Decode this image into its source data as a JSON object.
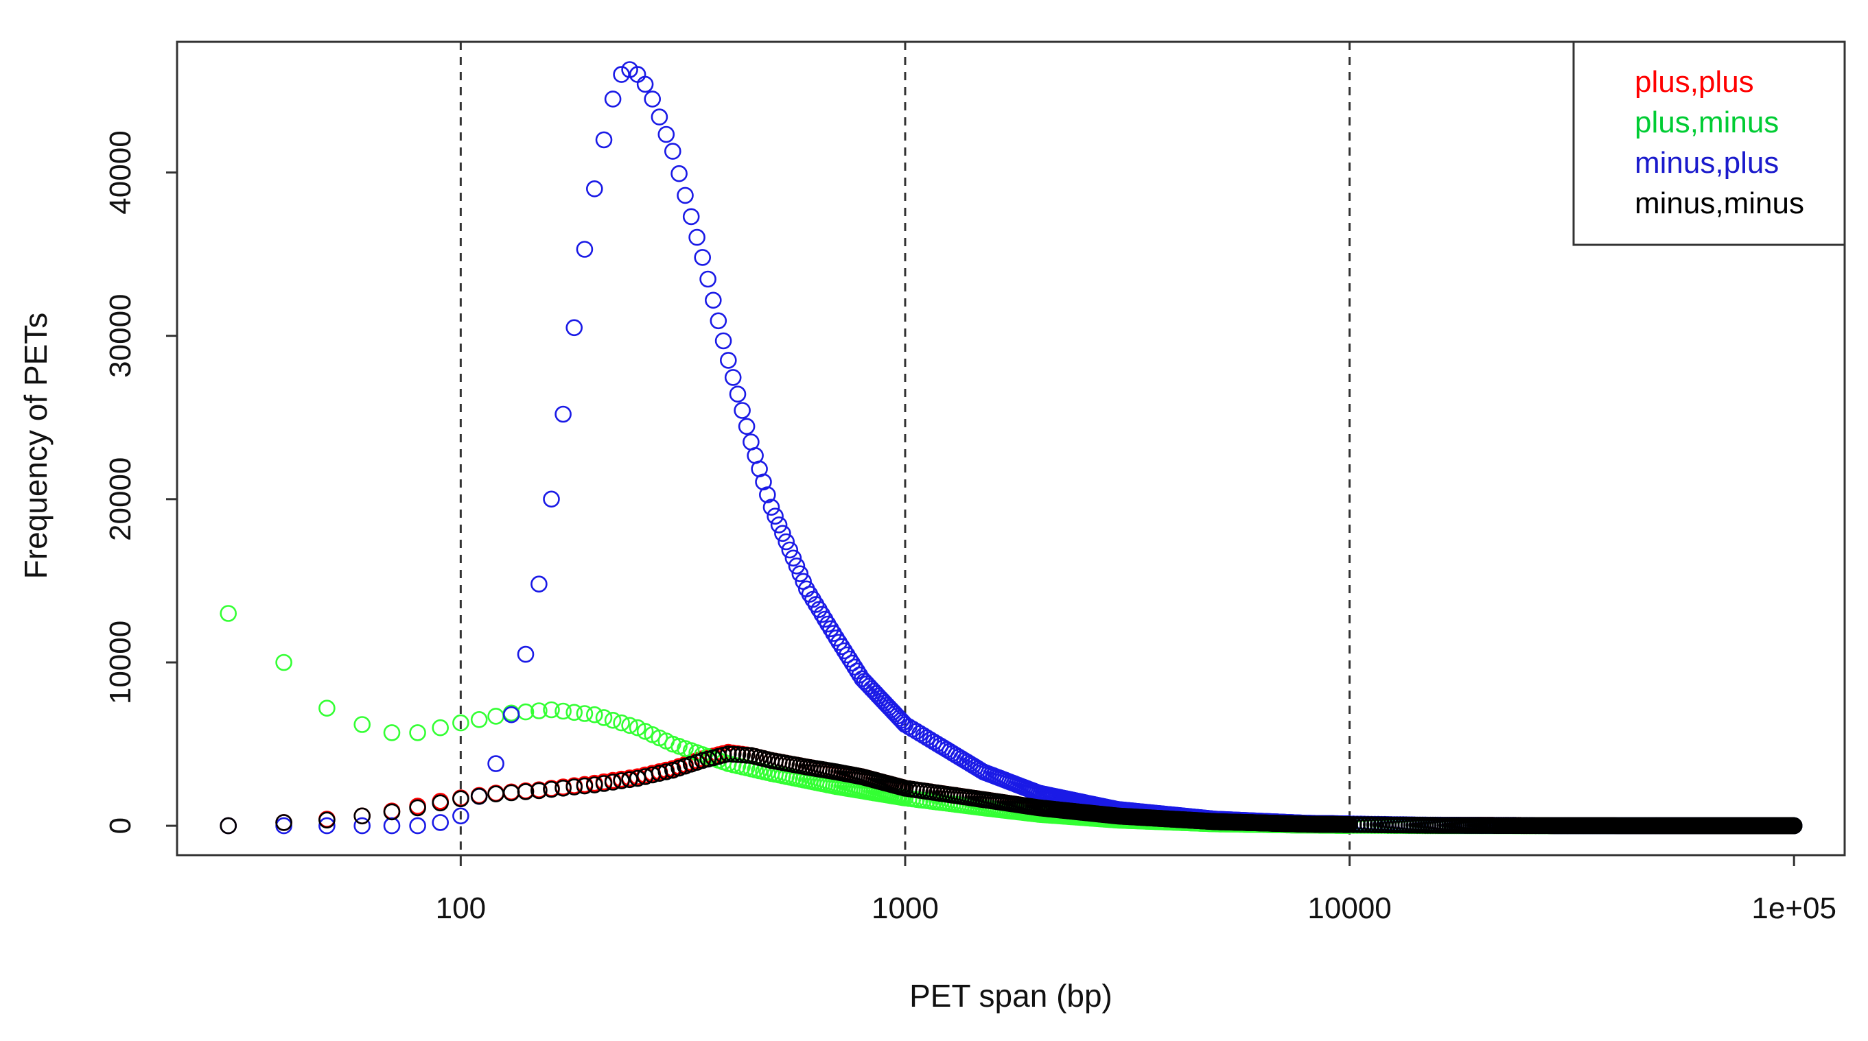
{
  "chart_data": {
    "type": "scatter",
    "title": "",
    "xlabel": "PET span (bp)",
    "ylabel": "Frequency of PETs",
    "xscale": "log",
    "xlim": [
      23,
      130000
    ],
    "ylim": [
      -1800,
      48000
    ],
    "x_ticks": [
      {
        "value": 100,
        "label": "100"
      },
      {
        "value": 1000,
        "label": "1000"
      },
      {
        "value": 10000,
        "label": "10000"
      },
      {
        "value": 100000,
        "label": "1e+05"
      }
    ],
    "y_ticks": [
      {
        "value": 0,
        "label": "0"
      },
      {
        "value": 10000,
        "label": "10000"
      },
      {
        "value": 20000,
        "label": "20000"
      },
      {
        "value": 30000,
        "label": "30000"
      },
      {
        "value": 40000,
        "label": "40000"
      }
    ],
    "vertical_gridlines": [
      100,
      1000,
      10000
    ],
    "gridline_style": "dashed",
    "legend_position": "top-right",
    "marker": "open-circle",
    "series": [
      {
        "name": "plus,plus",
        "color": "#ff0000",
        "legend_color": "#ff0000",
        "key_points": [
          [
            30,
            0
          ],
          [
            40,
            200
          ],
          [
            50,
            400
          ],
          [
            60,
            600
          ],
          [
            70,
            900
          ],
          [
            80,
            1200
          ],
          [
            90,
            1500
          ],
          [
            100,
            1700
          ],
          [
            120,
            2000
          ],
          [
            150,
            2200
          ],
          [
            200,
            2600
          ],
          [
            250,
            3000
          ],
          [
            300,
            3500
          ],
          [
            350,
            4100
          ],
          [
            400,
            4500
          ],
          [
            450,
            4300
          ],
          [
            500,
            4000
          ],
          [
            600,
            3600
          ],
          [
            800,
            3000
          ],
          [
            1000,
            2300
          ],
          [
            1500,
            1600
          ],
          [
            2000,
            1100
          ],
          [
            3000,
            600
          ],
          [
            5000,
            250
          ],
          [
            8000,
            100
          ],
          [
            15000,
            30
          ],
          [
            30000,
            10
          ],
          [
            100000,
            0
          ]
        ]
      },
      {
        "name": "plus,minus",
        "color": "#33ff33",
        "legend_color": "#00cc33",
        "key_points": [
          [
            30,
            13000
          ],
          [
            40,
            10000
          ],
          [
            50,
            7200
          ],
          [
            60,
            6200
          ],
          [
            70,
            5700
          ],
          [
            80,
            5700
          ],
          [
            90,
            6000
          ],
          [
            100,
            6300
          ],
          [
            110,
            6500
          ],
          [
            130,
            6900
          ],
          [
            160,
            7100
          ],
          [
            200,
            6800
          ],
          [
            250,
            6000
          ],
          [
            300,
            5000
          ],
          [
            400,
            3800
          ],
          [
            500,
            3200
          ],
          [
            700,
            2400
          ],
          [
            1000,
            1700
          ],
          [
            1500,
            1100
          ],
          [
            2000,
            700
          ],
          [
            3000,
            350
          ],
          [
            5000,
            120
          ],
          [
            8000,
            40
          ],
          [
            15000,
            10
          ],
          [
            100000,
            0
          ]
        ]
      },
      {
        "name": "minus,plus",
        "color": "#1a1ae6",
        "legend_color": "#1a1acc",
        "key_points": [
          [
            30,
            0
          ],
          [
            50,
            0
          ],
          [
            70,
            0
          ],
          [
            80,
            0
          ],
          [
            90,
            200
          ],
          [
            100,
            600
          ],
          [
            110,
            1800
          ],
          [
            120,
            3800
          ],
          [
            130,
            6800
          ],
          [
            140,
            10500
          ],
          [
            150,
            14800
          ],
          [
            160,
            20000
          ],
          [
            170,
            25200
          ],
          [
            180,
            30500
          ],
          [
            190,
            35300
          ],
          [
            200,
            39000
          ],
          [
            210,
            42000
          ],
          [
            220,
            44500
          ],
          [
            230,
            46000
          ],
          [
            240,
            46300
          ],
          [
            250,
            46000
          ],
          [
            260,
            45400
          ],
          [
            270,
            44500
          ],
          [
            280,
            43400
          ],
          [
            300,
            41300
          ],
          [
            320,
            38600
          ],
          [
            350,
            34800
          ],
          [
            400,
            28500
          ],
          [
            450,
            23500
          ],
          [
            500,
            19500
          ],
          [
            600,
            14500
          ],
          [
            700,
            11500
          ],
          [
            800,
            9000
          ],
          [
            1000,
            6200
          ],
          [
            1500,
            3300
          ],
          [
            2000,
            2000
          ],
          [
            3000,
            1000
          ],
          [
            5000,
            400
          ],
          [
            8000,
            150
          ],
          [
            15000,
            40
          ],
          [
            30000,
            10
          ],
          [
            100000,
            0
          ]
        ]
      },
      {
        "name": "minus,minus",
        "color": "#000000",
        "legend_color": "#000000",
        "key_points": [
          [
            30,
            0
          ],
          [
            40,
            200
          ],
          [
            50,
            350
          ],
          [
            60,
            600
          ],
          [
            70,
            850
          ],
          [
            80,
            1100
          ],
          [
            90,
            1400
          ],
          [
            100,
            1650
          ],
          [
            120,
            1950
          ],
          [
            150,
            2150
          ],
          [
            200,
            2500
          ],
          [
            250,
            2900
          ],
          [
            300,
            3400
          ],
          [
            350,
            4000
          ],
          [
            400,
            4400
          ],
          [
            450,
            4300
          ],
          [
            500,
            4000
          ],
          [
            600,
            3600
          ],
          [
            700,
            3300
          ],
          [
            800,
            3000
          ],
          [
            1000,
            2300
          ],
          [
            1500,
            1600
          ],
          [
            2000,
            1100
          ],
          [
            3000,
            600
          ],
          [
            5000,
            250
          ],
          [
            8000,
            100
          ],
          [
            15000,
            30
          ],
          [
            30000,
            10
          ],
          [
            100000,
            0
          ]
        ]
      }
    ]
  }
}
